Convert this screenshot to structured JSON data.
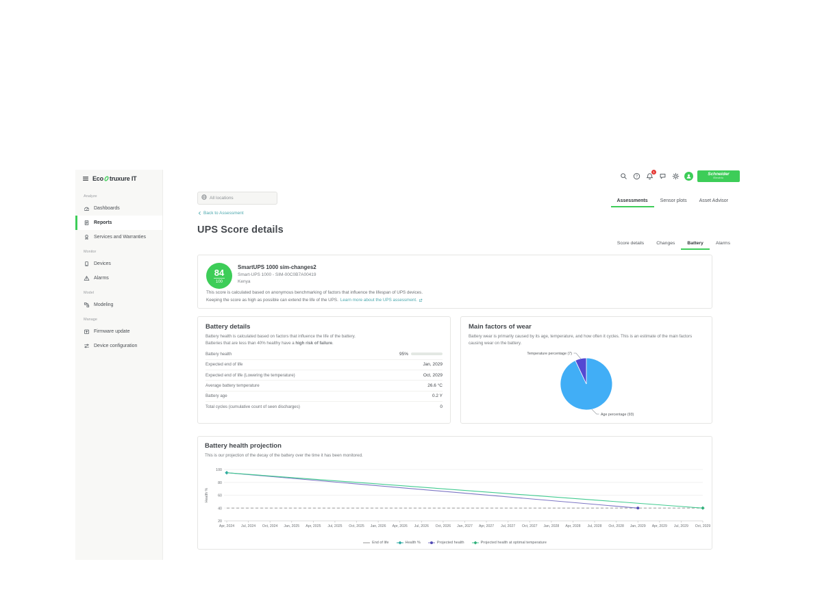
{
  "brand": {
    "logo_prefix": "Eco",
    "logo_suffix": "truxure IT",
    "schneider_line1": "Schneider",
    "schneider_line2": "Electric"
  },
  "sidebar": {
    "sections": [
      {
        "label": "Analyze",
        "items": [
          {
            "label": "Dashboards",
            "icon": "dashboards-icon",
            "active": false
          },
          {
            "label": "Reports",
            "icon": "reports-icon",
            "active": true
          },
          {
            "label": "Services and Warranties",
            "icon": "services-icon",
            "active": false
          }
        ]
      },
      {
        "label": "Monitor",
        "items": [
          {
            "label": "Devices",
            "icon": "devices-icon",
            "active": false
          },
          {
            "label": "Alarms",
            "icon": "alarms-icon",
            "active": false
          }
        ]
      },
      {
        "label": "Model",
        "items": [
          {
            "label": "Modeling",
            "icon": "modeling-icon",
            "active": false
          }
        ]
      },
      {
        "label": "Manage",
        "items": [
          {
            "label": "Firmware update",
            "icon": "firmware-icon",
            "active": false
          },
          {
            "label": "Device configuration",
            "icon": "device-config-icon",
            "active": false
          }
        ]
      }
    ]
  },
  "header": {
    "search_placeholder": "All locations",
    "notification_count": "1",
    "tabs": [
      {
        "label": "Assessments",
        "active": true
      },
      {
        "label": "Sensor plots",
        "active": false
      },
      {
        "label": "Asset Advisor",
        "active": false
      }
    ]
  },
  "page": {
    "back_link": "Back to Assessment",
    "title": "UPS Score details",
    "subtabs": [
      {
        "label": "Score details",
        "active": false
      },
      {
        "label": "Changes",
        "active": false
      },
      {
        "label": "Battery",
        "active": true
      },
      {
        "label": "Alarms",
        "active": false
      }
    ]
  },
  "score_card": {
    "score": "84",
    "score_max": "100",
    "device_name": "SmartUPS 1000 sim-changes2",
    "device_model": "Smart-UPS 1000 - SIM-00C0B7A00419",
    "location": "Kenya",
    "description_line1": "This score is calculated based on anonymous benchmarking of factors that influence the lifespan of UPS devices.",
    "description_line2": "Keeping the score as high as possible can extend the life of the UPS.",
    "learn_more": "Learn more about the UPS assessment."
  },
  "battery_details": {
    "title": "Battery details",
    "description_line1": "Battery health is calculated based on factors that influence the life of the battery.",
    "description_line2_prefix": "Batteries that are less than 40% healthy have a ",
    "description_line2_bold": "high risk of failure",
    "description_line2_suffix": ".",
    "rows": [
      {
        "label": "Battery health",
        "value": "95%",
        "bar_percent": 95
      },
      {
        "label": "Expected end of life",
        "value": "Jan, 2029"
      },
      {
        "label": "Expected end of life (Lowering the temperature)",
        "value": "Oct, 2029"
      },
      {
        "label": "Average battery temperature",
        "value": "26.6 °C"
      },
      {
        "label": "Battery age",
        "value": "0.2 Y"
      },
      {
        "label": "Total cycles (cumulative count of seen discharges)",
        "value": "0"
      }
    ]
  },
  "wear_factors": {
    "title": "Main factors of wear",
    "description": "Battery wear is primarily caused by its age, temperature, and how often it cycles. This is an estimate of the main factors causing wear on the battery."
  },
  "projection": {
    "title": "Battery health projection",
    "description": "This is our projection of the decay of the battery over the time it has been monitored."
  },
  "chart_data": [
    {
      "type": "pie",
      "title": "Main factors of wear",
      "labels": [
        "Age percentage (93)",
        "Temperature percentage (7)"
      ],
      "values": [
        93,
        7
      ],
      "colors": [
        "#41aef6",
        "#5449d2"
      ],
      "start_angle_deg": -90,
      "direction": "clockwise"
    },
    {
      "type": "line",
      "title": "Battery health projection",
      "ylabel": "Health %",
      "ylim": [
        20,
        100
      ],
      "yticks": [
        20,
        40,
        60,
        80,
        100
      ],
      "grid": true,
      "legend_position": "bottom",
      "x_labels": [
        "Apr, 2024",
        "Jul, 2024",
        "Oct, 2024",
        "Jan, 2025",
        "Apr, 2025",
        "Jul, 2025",
        "Oct, 2025",
        "Jan, 2026",
        "Apr, 2026",
        "Jul, 2026",
        "Oct, 2026",
        "Jan, 2027",
        "Apr, 2027",
        "Jul, 2027",
        "Oct, 2027",
        "Jan, 2028",
        "Apr, 2028",
        "Jul, 2028",
        "Oct, 2028",
        "Jan, 2029",
        "Apr, 2029",
        "Jul, 2029",
        "Oct, 2029"
      ],
      "series": [
        {
          "name": "End of life",
          "color": "#a6a6a6",
          "style": "dashed",
          "marker": "dash",
          "points": [
            [
              0,
              40
            ],
            [
              22,
              40
            ]
          ]
        },
        {
          "name": "Health %",
          "color": "#2aa8a0",
          "style": "none",
          "marker": "diamond",
          "points": [
            [
              0,
              95
            ]
          ]
        },
        {
          "name": "Projected health",
          "color": "#7b74c4",
          "marker_color": "#524bb5",
          "style": "solid",
          "marker": "dot",
          "points": [
            [
              0,
              95
            ],
            [
              19,
              40
            ]
          ]
        },
        {
          "name": "Projected health at optimal temperature",
          "color": "#3fca8f",
          "marker_color": "#2fae79",
          "style": "solid",
          "marker": "diamond",
          "points": [
            [
              0,
              95
            ],
            [
              22,
              40
            ]
          ]
        }
      ]
    }
  ]
}
